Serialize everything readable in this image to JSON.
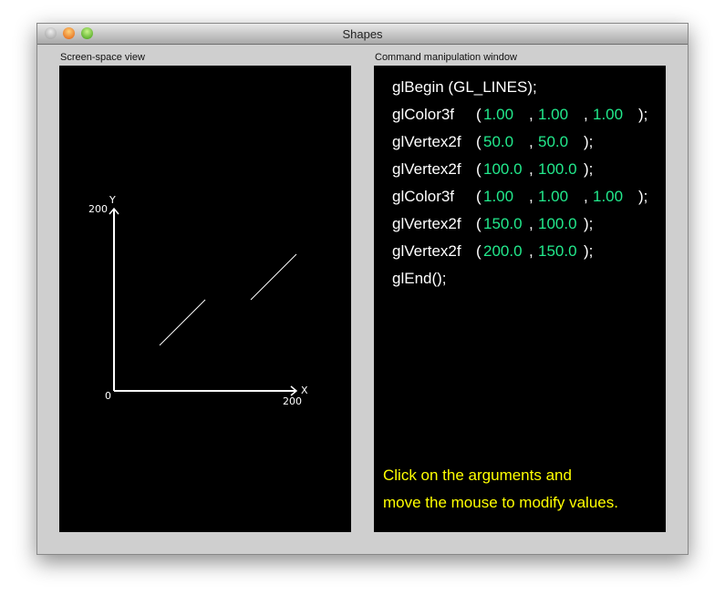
{
  "window": {
    "title": "Shapes"
  },
  "left_panel": {
    "label": "Screen-space view",
    "axis": {
      "x_label": "X",
      "y_label": "Y",
      "origin": "0",
      "x_max": "200",
      "y_max": "200"
    },
    "lines": [
      {
        "from": [
          50,
          50
        ],
        "to": [
          100,
          100
        ]
      },
      {
        "from": [
          150,
          100
        ],
        "to": [
          200,
          150
        ]
      }
    ]
  },
  "right_panel": {
    "label": "Command manipulation window",
    "commands": [
      {
        "name": "glBegin (GL_LINES);",
        "args": []
      },
      {
        "name": "glColor3f",
        "args": [
          "1.00",
          "1.00",
          "1.00"
        ]
      },
      {
        "name": "glVertex2f",
        "args": [
          "50.0",
          "50.0"
        ]
      },
      {
        "name": "glVertex2f",
        "args": [
          "100.0",
          "100.0"
        ]
      },
      {
        "name": "glColor3f",
        "args": [
          "1.00",
          "1.00",
          "1.00"
        ]
      },
      {
        "name": "glVertex2f",
        "args": [
          "150.0",
          "100.0"
        ]
      },
      {
        "name": "glVertex2f",
        "args": [
          "200.0",
          "150.0"
        ]
      },
      {
        "name": "glEnd();",
        "args": []
      }
    ],
    "hint_line1": "Click on the arguments and",
    "hint_line2": "move the mouse to modify values.",
    "arg_color": "#22e98c",
    "hint_color": "#ffff00"
  }
}
